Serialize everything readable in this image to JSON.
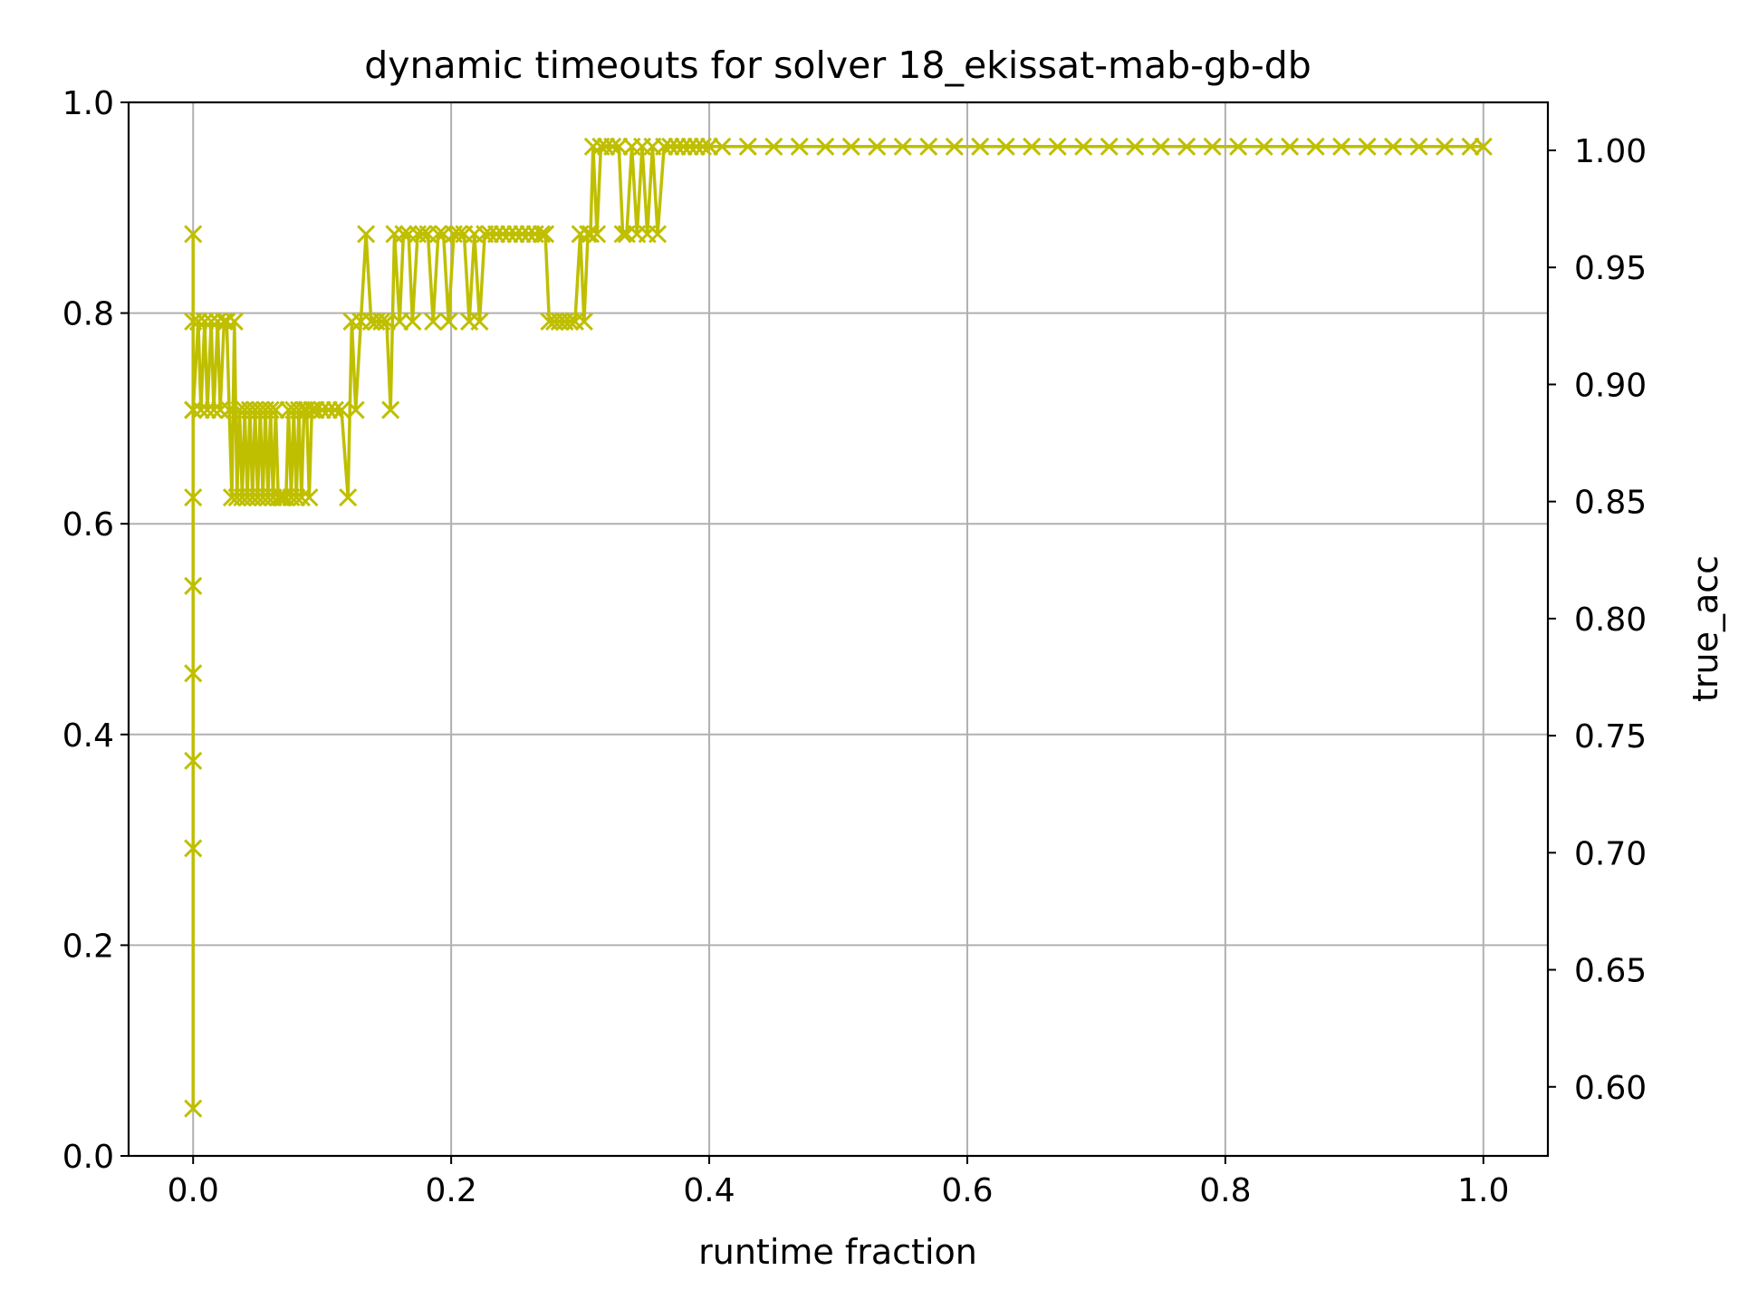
{
  "chart_data": {
    "type": "line",
    "title": "dynamic timeouts for solver 18_ekissat-mab-gb-db",
    "xlabel": "runtime fraction",
    "ylabel": "",
    "y2label": "true_acc",
    "xlim": [
      -0.05,
      1.05
    ],
    "ylim": [
      0.0,
      1.0
    ],
    "y2lim": [
      0.5705,
      1.0205
    ],
    "xticks": [
      "0.0",
      "0.2",
      "0.4",
      "0.6",
      "0.8",
      "1.0"
    ],
    "yticks": [
      "0.0",
      "0.2",
      "0.4",
      "0.6",
      "0.8",
      "1.0"
    ],
    "y2ticks": [
      "0.60",
      "0.65",
      "0.70",
      "0.75",
      "0.80",
      "0.85",
      "0.90",
      "0.95",
      "1.00"
    ],
    "grid": true,
    "colors": {
      "series": "#bfbf00",
      "y2label": "#ff0000",
      "grid": "#b0b0b0",
      "axes": "#000000"
    },
    "series": [
      {
        "marker": "x",
        "axis": "left",
        "points": [
          [
            0.0,
            0.045
          ],
          [
            0.0,
            0.292
          ],
          [
            0.0,
            0.375
          ],
          [
            0.0,
            0.458
          ],
          [
            0.0,
            0.541
          ],
          [
            0.0,
            0.625
          ],
          [
            0.0,
            0.708
          ],
          [
            0.0,
            0.792
          ],
          [
            0.0,
            0.875
          ],
          [
            0.0,
            0.708
          ],
          [
            0.004,
            0.792
          ],
          [
            0.006,
            0.708
          ],
          [
            0.009,
            0.792
          ],
          [
            0.011,
            0.708
          ],
          [
            0.014,
            0.792
          ],
          [
            0.016,
            0.708
          ],
          [
            0.019,
            0.792
          ],
          [
            0.021,
            0.708
          ],
          [
            0.024,
            0.792
          ],
          [
            0.026,
            0.792
          ],
          [
            0.028,
            0.708
          ],
          [
            0.03,
            0.625
          ],
          [
            0.032,
            0.792
          ],
          [
            0.034,
            0.625
          ],
          [
            0.036,
            0.708
          ],
          [
            0.038,
            0.625
          ],
          [
            0.04,
            0.708
          ],
          [
            0.042,
            0.625
          ],
          [
            0.044,
            0.708
          ],
          [
            0.046,
            0.625
          ],
          [
            0.048,
            0.708
          ],
          [
            0.05,
            0.625
          ],
          [
            0.052,
            0.708
          ],
          [
            0.054,
            0.625
          ],
          [
            0.056,
            0.708
          ],
          [
            0.058,
            0.625
          ],
          [
            0.06,
            0.708
          ],
          [
            0.062,
            0.625
          ],
          [
            0.064,
            0.708
          ],
          [
            0.066,
            0.625
          ],
          [
            0.068,
            0.625
          ],
          [
            0.07,
            0.625
          ],
          [
            0.072,
            0.625
          ],
          [
            0.074,
            0.708
          ],
          [
            0.076,
            0.625
          ],
          [
            0.078,
            0.708
          ],
          [
            0.08,
            0.625
          ],
          [
            0.082,
            0.708
          ],
          [
            0.084,
            0.625
          ],
          [
            0.086,
            0.708
          ],
          [
            0.088,
            0.708
          ],
          [
            0.09,
            0.625
          ],
          [
            0.092,
            0.708
          ],
          [
            0.095,
            0.708
          ],
          [
            0.1,
            0.708
          ],
          [
            0.105,
            0.708
          ],
          [
            0.11,
            0.708
          ],
          [
            0.115,
            0.708
          ],
          [
            0.12,
            0.625
          ],
          [
            0.123,
            0.792
          ],
          [
            0.126,
            0.708
          ],
          [
            0.13,
            0.792
          ],
          [
            0.134,
            0.875
          ],
          [
            0.138,
            0.792
          ],
          [
            0.142,
            0.792
          ],
          [
            0.146,
            0.792
          ],
          [
            0.15,
            0.792
          ],
          [
            0.153,
            0.708
          ],
          [
            0.156,
            0.875
          ],
          [
            0.16,
            0.792
          ],
          [
            0.163,
            0.875
          ],
          [
            0.167,
            0.875
          ],
          [
            0.17,
            0.792
          ],
          [
            0.174,
            0.875
          ],
          [
            0.178,
            0.875
          ],
          [
            0.182,
            0.875
          ],
          [
            0.186,
            0.792
          ],
          [
            0.19,
            0.875
          ],
          [
            0.194,
            0.875
          ],
          [
            0.198,
            0.792
          ],
          [
            0.202,
            0.875
          ],
          [
            0.206,
            0.875
          ],
          [
            0.21,
            0.875
          ],
          [
            0.214,
            0.792
          ],
          [
            0.218,
            0.875
          ],
          [
            0.222,
            0.792
          ],
          [
            0.226,
            0.875
          ],
          [
            0.23,
            0.875
          ],
          [
            0.235,
            0.875
          ],
          [
            0.24,
            0.875
          ],
          [
            0.245,
            0.875
          ],
          [
            0.25,
            0.875
          ],
          [
            0.255,
            0.875
          ],
          [
            0.26,
            0.875
          ],
          [
            0.265,
            0.875
          ],
          [
            0.27,
            0.875
          ],
          [
            0.273,
            0.875
          ],
          [
            0.276,
            0.792
          ],
          [
            0.28,
            0.792
          ],
          [
            0.284,
            0.792
          ],
          [
            0.288,
            0.792
          ],
          [
            0.292,
            0.792
          ],
          [
            0.296,
            0.792
          ],
          [
            0.3,
            0.875
          ],
          [
            0.303,
            0.792
          ],
          [
            0.306,
            0.875
          ],
          [
            0.308,
            0.875
          ],
          [
            0.31,
            0.958
          ],
          [
            0.313,
            0.875
          ],
          [
            0.316,
            0.958
          ],
          [
            0.32,
            0.958
          ],
          [
            0.325,
            0.958
          ],
          [
            0.33,
            0.958
          ],
          [
            0.333,
            0.875
          ],
          [
            0.336,
            0.875
          ],
          [
            0.34,
            0.958
          ],
          [
            0.344,
            0.875
          ],
          [
            0.348,
            0.958
          ],
          [
            0.352,
            0.875
          ],
          [
            0.356,
            0.958
          ],
          [
            0.36,
            0.875
          ],
          [
            0.365,
            0.958
          ],
          [
            0.37,
            0.958
          ],
          [
            0.375,
            0.958
          ],
          [
            0.38,
            0.958
          ],
          [
            0.385,
            0.958
          ],
          [
            0.39,
            0.958
          ],
          [
            0.395,
            0.958
          ],
          [
            0.4,
            0.958
          ],
          [
            0.41,
            0.958
          ],
          [
            0.43,
            0.958
          ],
          [
            0.45,
            0.958
          ],
          [
            0.47,
            0.958
          ],
          [
            0.49,
            0.958
          ],
          [
            0.51,
            0.958
          ],
          [
            0.53,
            0.958
          ],
          [
            0.55,
            0.958
          ],
          [
            0.57,
            0.958
          ],
          [
            0.59,
            0.958
          ],
          [
            0.61,
            0.958
          ],
          [
            0.63,
            0.958
          ],
          [
            0.65,
            0.958
          ],
          [
            0.67,
            0.958
          ],
          [
            0.69,
            0.958
          ],
          [
            0.71,
            0.958
          ],
          [
            0.73,
            0.958
          ],
          [
            0.75,
            0.958
          ],
          [
            0.77,
            0.958
          ],
          [
            0.79,
            0.958
          ],
          [
            0.81,
            0.958
          ],
          [
            0.83,
            0.958
          ],
          [
            0.85,
            0.958
          ],
          [
            0.87,
            0.958
          ],
          [
            0.89,
            0.958
          ],
          [
            0.91,
            0.958
          ],
          [
            0.93,
            0.958
          ],
          [
            0.95,
            0.958
          ],
          [
            0.97,
            0.958
          ],
          [
            0.99,
            0.958
          ],
          [
            1.0,
            0.958
          ]
        ]
      }
    ]
  }
}
